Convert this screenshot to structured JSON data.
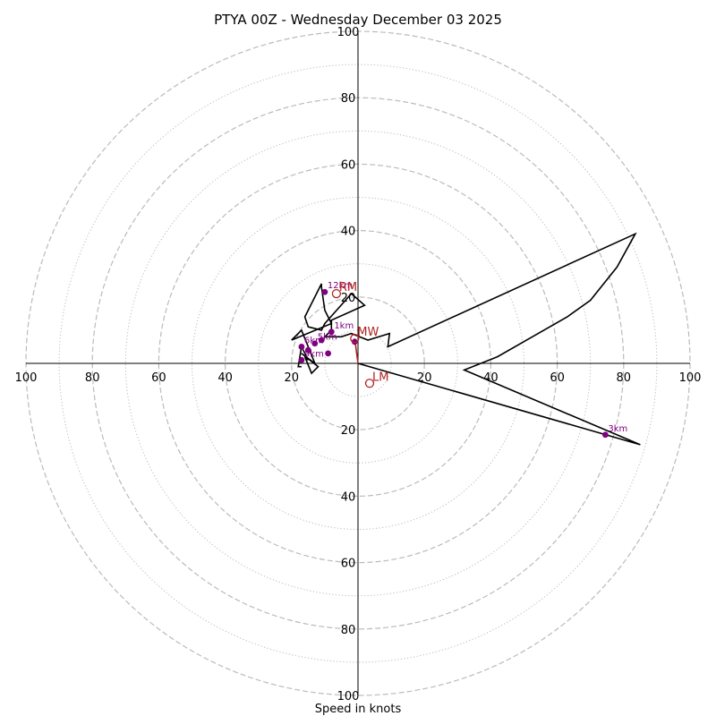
{
  "chart_data": {
    "type": "hodograph",
    "title": "PTYA 00Z - Wednesday December 03 2025",
    "xlabel": "Speed in knots",
    "ylabel": "",
    "range": [
      -100,
      100
    ],
    "major_rings": [
      20,
      40,
      60,
      80,
      100
    ],
    "minor_rings": [
      10,
      30,
      50,
      70,
      90
    ],
    "x_tick_labels": [
      "100",
      "80",
      "60",
      "40",
      "20",
      "20",
      "40",
      "60",
      "80",
      "100"
    ],
    "x_tick_values": [
      -100,
      -80,
      -60,
      -40,
      -20,
      20,
      40,
      60,
      80,
      100
    ],
    "y_tick_labels": [
      "100",
      "80",
      "60",
      "40",
      "20",
      "20",
      "40",
      "60",
      "80",
      "100"
    ],
    "y_tick_values": [
      100,
      80,
      60,
      40,
      20,
      -20,
      -40,
      -60,
      -80,
      -100
    ],
    "colors": {
      "trace": "#000000",
      "height_marker": "#800080",
      "motion": "#b22222",
      "grid": "#bbbbbb",
      "axis": "#000000"
    },
    "series": [
      {
        "name": "hodograph-trace",
        "points": [
          [
            0,
            0
          ],
          [
            85,
            -24.5
          ],
          [
            32,
            -2
          ],
          [
            42,
            2
          ],
          [
            63,
            14
          ],
          [
            70,
            19
          ],
          [
            78,
            29
          ],
          [
            83.5,
            39
          ],
          [
            9,
            5
          ],
          [
            9.5,
            9
          ],
          [
            3,
            7
          ],
          [
            -2,
            9
          ],
          [
            -5,
            8
          ],
          [
            -10,
            8
          ],
          [
            -8,
            10
          ],
          [
            -8,
            13
          ],
          [
            2,
            17.5
          ],
          [
            -2,
            21
          ],
          [
            -10,
            12
          ],
          [
            -11,
            10
          ],
          [
            -15,
            11
          ],
          [
            -16,
            14
          ],
          [
            -11,
            24
          ],
          [
            -11,
            23
          ],
          [
            -10,
            16
          ],
          [
            -8,
            12
          ],
          [
            -20,
            7
          ],
          [
            -17,
            10
          ],
          [
            -13,
            0
          ],
          [
            -17,
            3
          ],
          [
            -12,
            -1
          ],
          [
            -14,
            -3
          ],
          [
            -16,
            2
          ],
          [
            -15,
            1
          ],
          [
            -17,
            5
          ],
          [
            -18,
            -1
          ],
          [
            -17,
            -1
          ]
        ]
      }
    ],
    "height_markers": [
      {
        "label": "1km",
        "u": -8,
        "v": 9.5
      },
      {
        "label": "3km",
        "u": 74.5,
        "v": -21.5
      },
      {
        "label": "5km",
        "u": -13,
        "v": 6
      },
      {
        "label": "6km",
        "u": -17,
        "v": 5
      },
      {
        "label": "9km",
        "u": -17,
        "v": 1
      },
      {
        "label": "12km",
        "u": -10,
        "v": 21.5
      },
      {
        "label": "",
        "u": -15,
        "v": 4
      },
      {
        "label": "",
        "u": -9,
        "v": 3
      },
      {
        "label": "",
        "u": -1,
        "v": 6.5
      },
      {
        "label": "",
        "u": -11,
        "v": 7
      }
    ],
    "storm_motions": [
      {
        "label": "RM",
        "u": -6.5,
        "v": 21
      },
      {
        "label": "LM",
        "u": 3.5,
        "v": -6
      },
      {
        "label": "MW",
        "u": -1,
        "v": 7.5
      }
    ]
  }
}
